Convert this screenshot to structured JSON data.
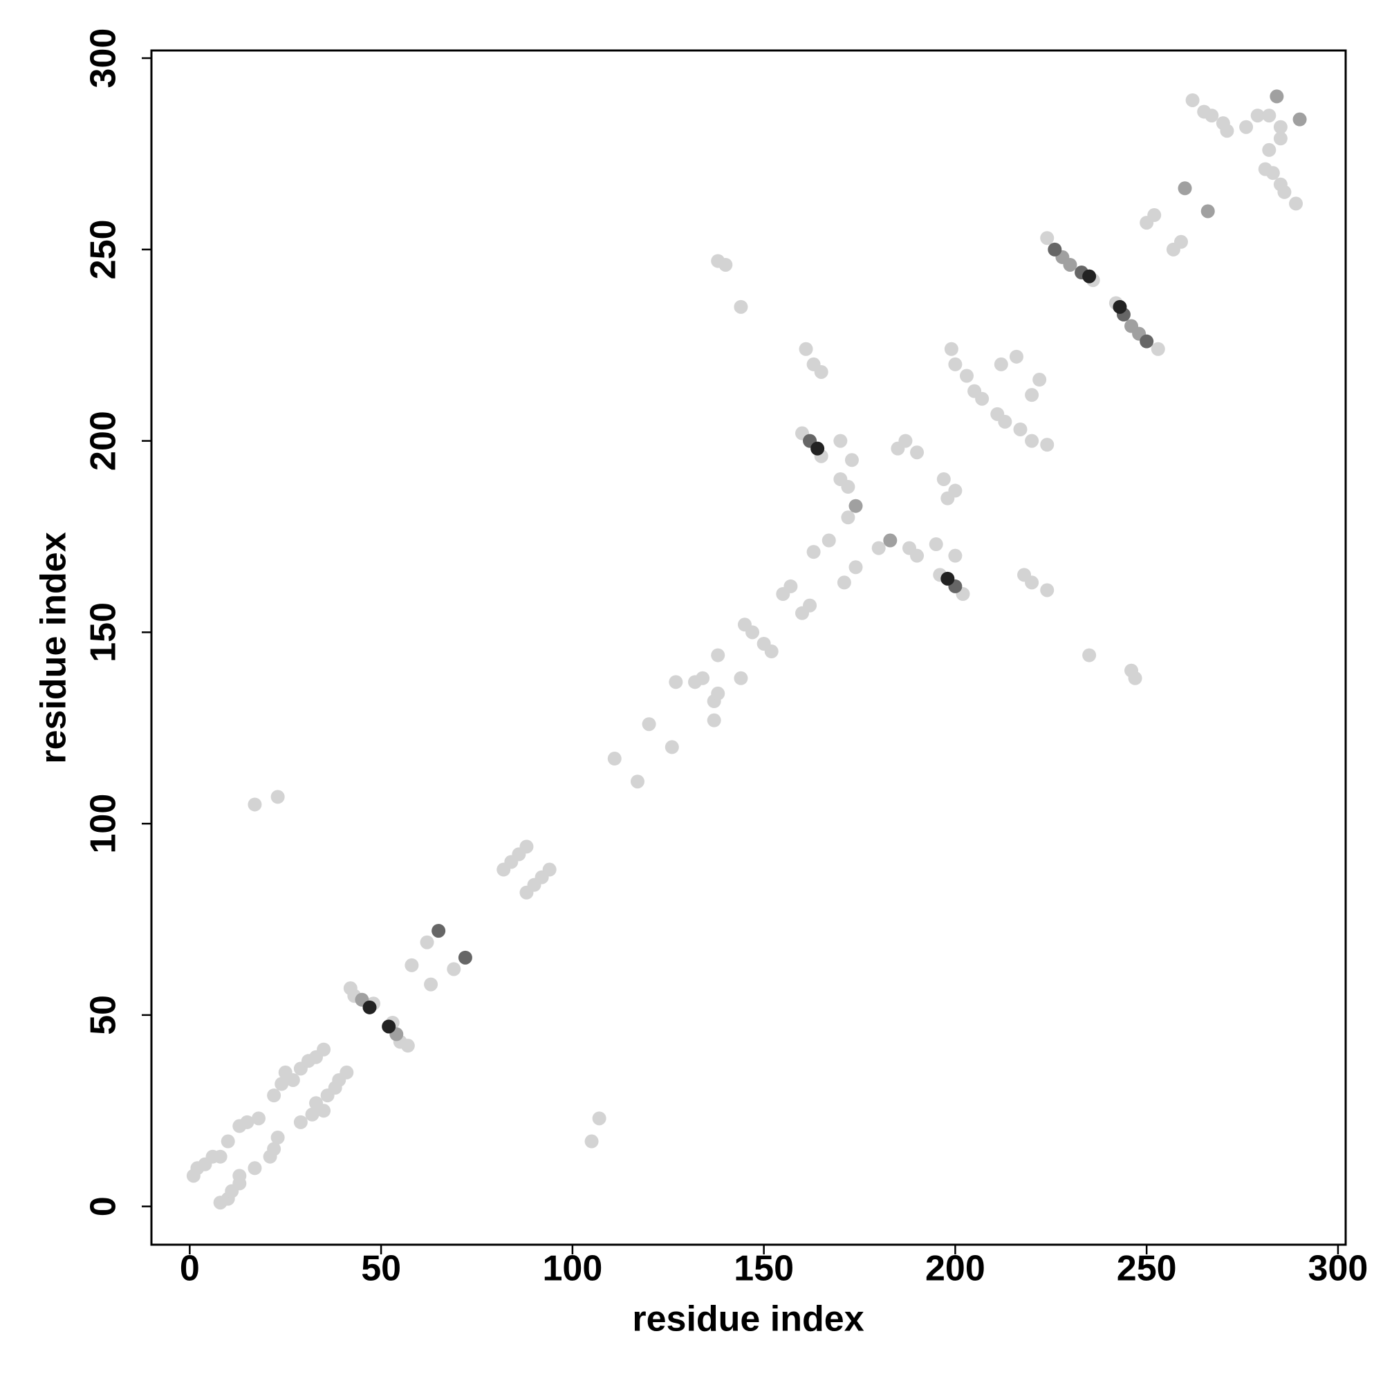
{
  "chart_data": {
    "type": "scatter",
    "xlabel": "residue index",
    "ylabel": "residue index",
    "xlim": [
      -10,
      302
    ],
    "ylim": [
      -10,
      302
    ],
    "xticks": [
      0,
      50,
      100,
      150,
      200,
      250,
      300
    ],
    "yticks": [
      0,
      50,
      100,
      150,
      200,
      250,
      300
    ],
    "series": [
      {
        "color": "#d3d3d3",
        "x": [
          1,
          2,
          4,
          6,
          8,
          10,
          13,
          15,
          18,
          22,
          24,
          25,
          27,
          29,
          31,
          33,
          35,
          42,
          43,
          48,
          58,
          62,
          82,
          84,
          86,
          88,
          17,
          23,
          111,
          120,
          127,
          132,
          134,
          138,
          145,
          147,
          155,
          157,
          160,
          165,
          163,
          167,
          172,
          170,
          172,
          170,
          173,
          185,
          187,
          190,
          199,
          203,
          205,
          207,
          200,
          212,
          216,
          161,
          163,
          165,
          138,
          140,
          144,
          224,
          236,
          250,
          252,
          262,
          265,
          267,
          270,
          271,
          276,
          279,
          282,
          8,
          10,
          11,
          13,
          13,
          17,
          21,
          22,
          23,
          29,
          32,
          35,
          33,
          36,
          38,
          39,
          41,
          57,
          55,
          53,
          63,
          69,
          88,
          90,
          92,
          94,
          105,
          107,
          117,
          126,
          137,
          137,
          138,
          144,
          152,
          150,
          160,
          162,
          202,
          196,
          171,
          174,
          180,
          190,
          188,
          200,
          195,
          198,
          200,
          197,
          224,
          217,
          213,
          211,
          220,
          220,
          222,
          224,
          220,
          218,
          247,
          246,
          235,
          253,
          242,
          257,
          259,
          289,
          286,
          285,
          283,
          281,
          282,
          285,
          285
        ],
        "y": [
          8,
          10,
          11,
          13,
          13,
          17,
          21,
          22,
          23,
          29,
          32,
          35,
          33,
          36,
          38,
          39,
          41,
          57,
          55,
          53,
          63,
          69,
          88,
          90,
          92,
          94,
          105,
          107,
          117,
          126,
          137,
          137,
          138,
          144,
          152,
          150,
          160,
          162,
          202,
          196,
          171,
          174,
          180,
          190,
          188,
          200,
          195,
          198,
          200,
          197,
          224,
          217,
          213,
          211,
          220,
          220,
          222,
          224,
          220,
          218,
          247,
          246,
          235,
          253,
          242,
          257,
          259,
          289,
          286,
          285,
          283,
          281,
          282,
          285,
          285,
          1,
          2,
          4,
          6,
          8,
          10,
          13,
          15,
          18,
          22,
          24,
          25,
          27,
          29,
          31,
          33,
          35,
          42,
          43,
          48,
          58,
          62,
          82,
          84,
          86,
          88,
          17,
          23,
          111,
          120,
          127,
          132,
          134,
          138,
          145,
          147,
          155,
          157,
          160,
          165,
          163,
          167,
          172,
          170,
          172,
          170,
          173,
          185,
          187,
          190,
          199,
          203,
          205,
          207,
          200,
          212,
          216,
          161,
          163,
          165,
          138,
          140,
          144,
          224,
          236,
          250,
          252,
          262,
          265,
          267,
          270,
          271,
          276,
          279,
          282
        ]
      },
      {
        "color": "#a0a0a0",
        "x": [
          174,
          260,
          284,
          45,
          228,
          230,
          183,
          266,
          290,
          54,
          248,
          246
        ],
        "y": [
          183,
          266,
          290,
          54,
          248,
          246,
          174,
          260,
          284,
          45,
          228,
          230
        ]
      },
      {
        "color": "#666666",
        "x": [
          65,
          162,
          226,
          233,
          72,
          200,
          250,
          244
        ],
        "y": [
          72,
          200,
          250,
          244,
          65,
          162,
          226,
          233
        ]
      },
      {
        "color": "#222222",
        "x": [
          47,
          164,
          235,
          52,
          198,
          243
        ],
        "y": [
          52,
          198,
          243,
          47,
          164,
          235
        ]
      }
    ]
  }
}
